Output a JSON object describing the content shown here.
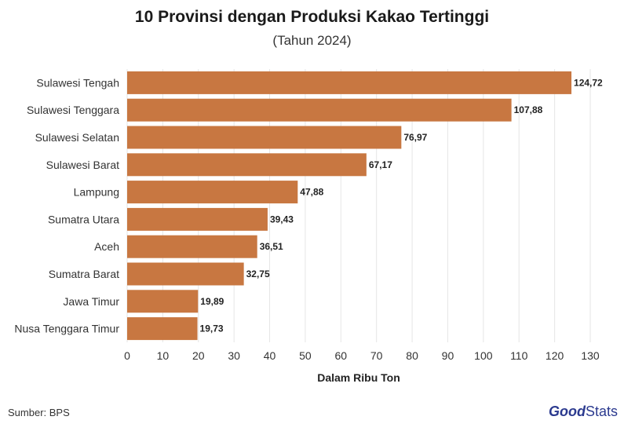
{
  "chart_data": {
    "type": "bar",
    "orientation": "horizontal",
    "title": "10 Provinsi dengan Produksi Kakao Tertinggi",
    "subtitle": "(Tahun 2024)",
    "xlabel": "Dalam Ribu Ton",
    "ylabel": "",
    "categories": [
      "Sulawesi Tengah",
      "Sulawesi Tenggara",
      "Sulawesi Selatan",
      "Sulawesi Barat",
      "Lampung",
      "Sumatra Utara",
      "Aceh",
      "Sumatra Barat",
      "Jawa Timur",
      "Nusa Tenggara Timur"
    ],
    "values": [
      124.72,
      107.88,
      76.97,
      67.17,
      47.88,
      39.43,
      36.51,
      32.75,
      19.89,
      19.73
    ],
    "value_labels": [
      "124,72",
      "107,88",
      "76,97",
      "67,17",
      "47,88",
      "39,43",
      "36,51",
      "32,75",
      "19,89",
      "19,73"
    ],
    "xlim": [
      0,
      130
    ],
    "xticks": [
      0,
      10,
      20,
      30,
      40,
      50,
      60,
      70,
      80,
      90,
      100,
      110,
      120,
      130
    ],
    "grid": true,
    "bar_color": "#c87741"
  },
  "footer": {
    "source": "Sumber: BPS",
    "logo_good": "Good",
    "logo_stats": "Stats"
  }
}
